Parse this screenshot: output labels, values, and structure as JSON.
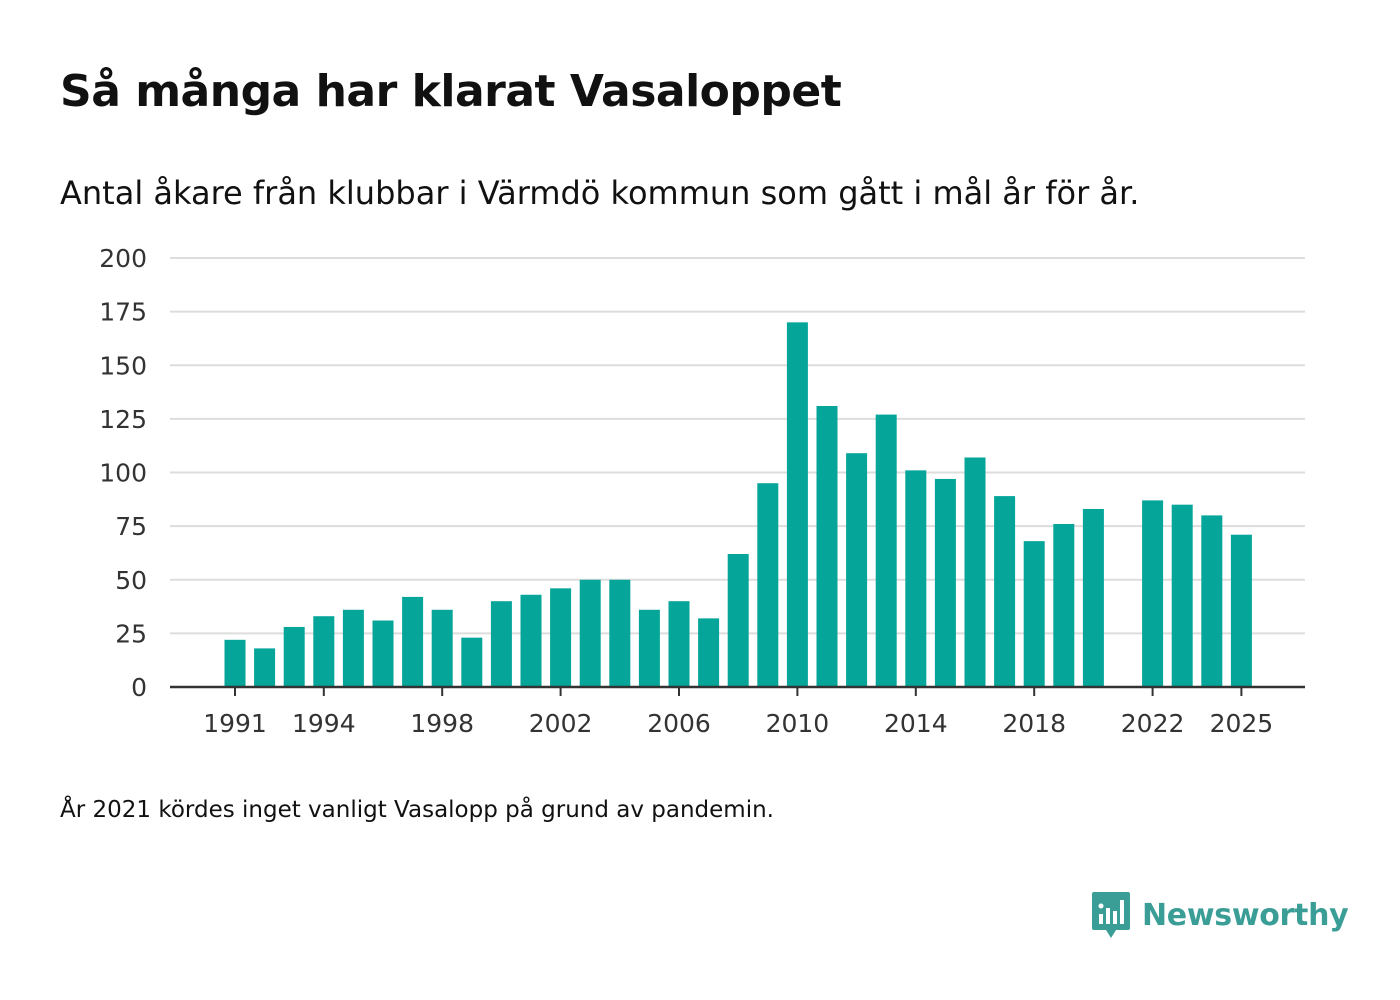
{
  "chart_data": {
    "type": "bar",
    "title": "Så många har klarat Vasaloppet",
    "subtitle": "Antal åkare från klubbar i Värmdö kommun som gått i mål år för år.",
    "xlabel": "",
    "ylabel": "",
    "ylim": [
      0,
      200
    ],
    "yticks": [
      0,
      25,
      50,
      75,
      100,
      125,
      150,
      175,
      200
    ],
    "xticks": [
      1991,
      1994,
      1998,
      2002,
      2006,
      2010,
      2014,
      2018,
      2022,
      2025
    ],
    "grid": true,
    "color": "#05a59a",
    "categories": [
      1991,
      1992,
      1993,
      1994,
      1995,
      1996,
      1997,
      1998,
      1999,
      2000,
      2001,
      2002,
      2003,
      2004,
      2005,
      2006,
      2007,
      2008,
      2009,
      2010,
      2011,
      2012,
      2013,
      2014,
      2015,
      2016,
      2017,
      2018,
      2019,
      2020,
      2021,
      2022,
      2023,
      2024,
      2025
    ],
    "values": [
      22,
      18,
      28,
      33,
      36,
      31,
      42,
      36,
      23,
      40,
      43,
      46,
      50,
      50,
      36,
      40,
      32,
      62,
      95,
      170,
      131,
      109,
      127,
      101,
      97,
      107,
      89,
      68,
      76,
      83,
      null,
      87,
      85,
      80,
      71
    ]
  },
  "footnote": "År 2021 kördes inget vanligt Vasalopp på grund av pandemin.",
  "brand": {
    "name": "Newsworthy",
    "color": "#3a9e97",
    "icon": "newsworthy-logo-icon"
  }
}
